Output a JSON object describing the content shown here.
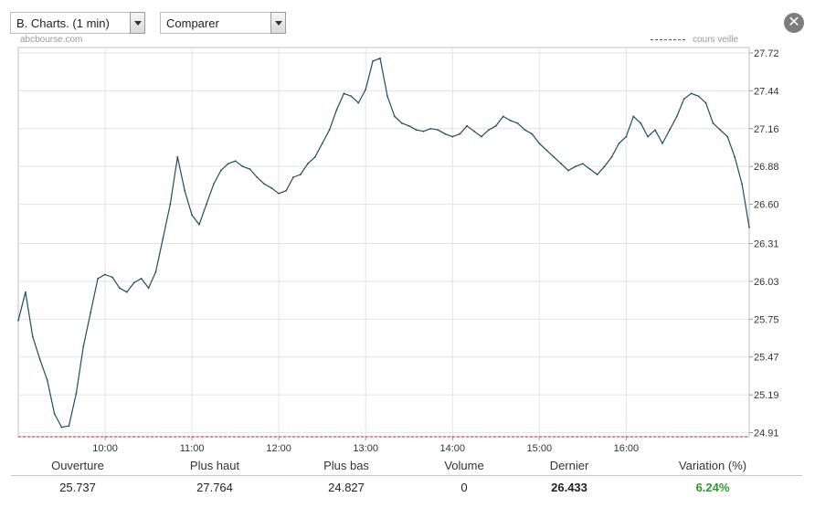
{
  "toolbar": {
    "chart_type_select": "B. Charts. (1 min)",
    "compare_select": "Comparer",
    "close_label": "✕"
  },
  "source": "abcbourse.com",
  "legend": {
    "reference_label": "cours veille",
    "reference_color": "#cc2222"
  },
  "stats": {
    "headers": [
      "Ouverture",
      "Plus haut",
      "Plus bas",
      "Volume",
      "Dernier",
      "Variation (%)"
    ],
    "values": [
      "25.737",
      "27.764",
      "24.827",
      "0",
      "26.433",
      "6.24%"
    ],
    "variation_color": "#2b9b2b"
  },
  "chart_data": {
    "type": "line",
    "line_color": "#1f4e5f",
    "x_ticks": [
      "10:00",
      "11:00",
      "12:00",
      "13:00",
      "14:00",
      "15:00",
      "16:00"
    ],
    "x_range": [
      "09:00",
      "17:25"
    ],
    "y_ticks": [
      "27.72",
      "27.44",
      "27.16",
      "26.88",
      "26.60",
      "26.31",
      "26.03",
      "25.75",
      "25.47",
      "25.19",
      "24.91"
    ],
    "ylim": [
      24.88,
      27.76
    ],
    "reference_line": 24.88,
    "grid": true,
    "x": [
      "09:00",
      "09:05",
      "09:10",
      "09:15",
      "09:20",
      "09:25",
      "09:30",
      "09:35",
      "09:40",
      "09:45",
      "09:50",
      "09:55",
      "10:00",
      "10:05",
      "10:10",
      "10:15",
      "10:20",
      "10:25",
      "10:30",
      "10:35",
      "10:40",
      "10:45",
      "10:50",
      "10:55",
      "11:00",
      "11:05",
      "11:10",
      "11:15",
      "11:20",
      "11:25",
      "11:30",
      "11:35",
      "11:40",
      "11:45",
      "11:50",
      "11:55",
      "12:00",
      "12:05",
      "12:10",
      "12:15",
      "12:20",
      "12:25",
      "12:30",
      "12:35",
      "12:40",
      "12:45",
      "12:50",
      "12:55",
      "13:00",
      "13:05",
      "13:10",
      "13:15",
      "13:20",
      "13:25",
      "13:30",
      "13:35",
      "13:40",
      "13:45",
      "13:50",
      "13:55",
      "14:00",
      "14:05",
      "14:10",
      "14:15",
      "14:20",
      "14:25",
      "14:30",
      "14:35",
      "14:40",
      "14:45",
      "14:50",
      "14:55",
      "15:00",
      "15:05",
      "15:10",
      "15:15",
      "15:20",
      "15:25",
      "15:30",
      "15:35",
      "15:40",
      "15:45",
      "15:50",
      "15:55",
      "16:00",
      "16:05",
      "16:10",
      "16:15",
      "16:20",
      "16:25",
      "16:30",
      "16:35",
      "16:40",
      "16:45",
      "16:50",
      "16:55",
      "17:00",
      "17:05",
      "17:10",
      "17:15",
      "17:20",
      "17:25"
    ],
    "values": [
      25.74,
      25.95,
      25.62,
      25.45,
      25.3,
      25.05,
      24.95,
      24.96,
      25.2,
      25.55,
      25.8,
      26.05,
      26.08,
      26.06,
      25.98,
      25.95,
      26.02,
      26.05,
      25.98,
      26.1,
      26.35,
      26.6,
      26.95,
      26.7,
      26.52,
      26.45,
      26.6,
      26.75,
      26.85,
      26.9,
      26.92,
      26.88,
      26.86,
      26.8,
      26.75,
      26.72,
      26.68,
      26.7,
      26.8,
      26.82,
      26.9,
      26.95,
      27.05,
      27.15,
      27.3,
      27.42,
      27.4,
      27.35,
      27.45,
      27.66,
      27.68,
      27.4,
      27.25,
      27.2,
      27.18,
      27.15,
      27.14,
      27.16,
      27.15,
      27.12,
      27.1,
      27.12,
      27.18,
      27.14,
      27.1,
      27.15,
      27.18,
      27.25,
      27.22,
      27.2,
      27.15,
      27.12,
      27.05,
      27.0,
      26.95,
      26.9,
      26.85,
      26.88,
      26.9,
      26.86,
      26.82,
      26.88,
      26.95,
      27.05,
      27.1,
      27.25,
      27.2,
      27.1,
      27.15,
      27.05,
      27.15,
      27.25,
      27.38,
      27.42,
      27.4,
      27.35,
      27.2,
      27.15,
      27.1,
      26.95,
      26.75,
      26.43
    ]
  }
}
